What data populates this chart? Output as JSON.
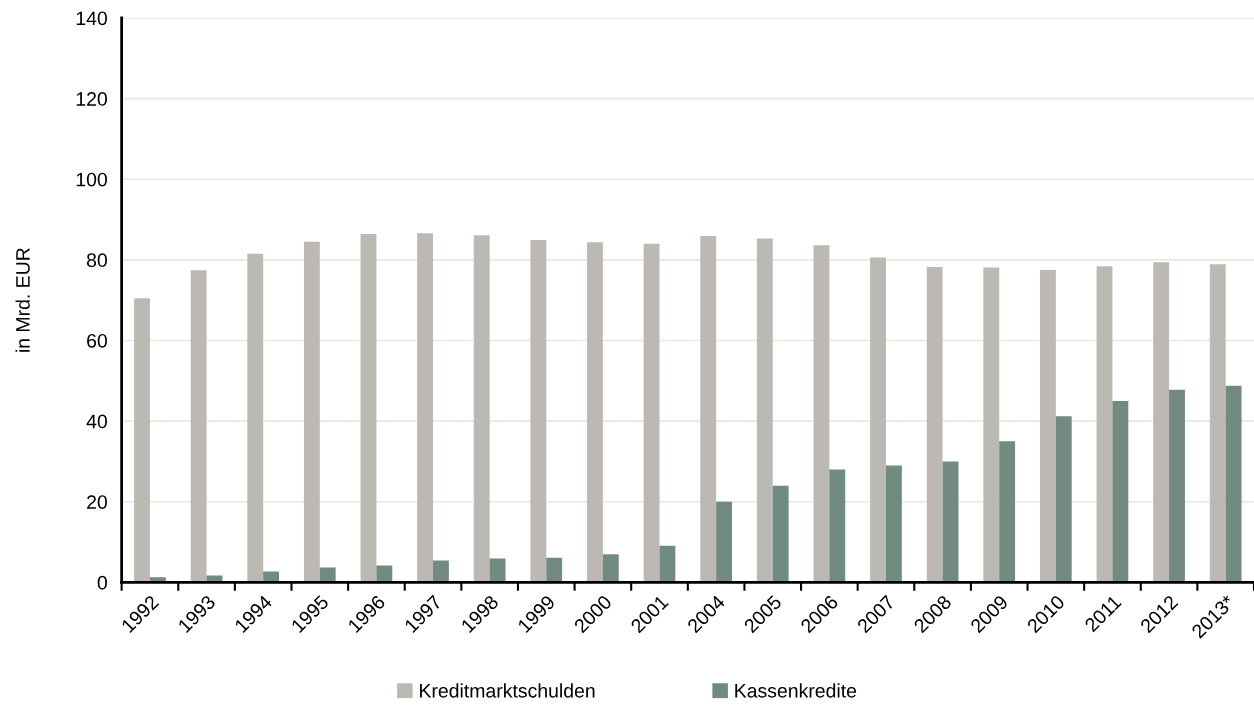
{
  "chart_data": {
    "type": "bar",
    "ylabel": "in Mrd. EUR",
    "categories": [
      "1992",
      "1993",
      "1994",
      "1995",
      "1996",
      "1997",
      "1998",
      "1999",
      "2000",
      "2001",
      "2004",
      "2005",
      "2006",
      "2007",
      "2008",
      "2009",
      "2010",
      "2011",
      "2012",
      "2013*"
    ],
    "series": [
      {
        "name": "Kreditmarktschulden",
        "color": "#bcb8b4",
        "values": [
          70.5,
          77.4,
          81.5,
          84.5,
          86.4,
          86.6,
          86.1,
          84.9,
          84.4,
          84.0,
          85.9,
          85.3,
          83.6,
          80.6,
          78.2,
          78.1,
          77.5,
          78.4,
          79.4,
          78.9
        ]
      },
      {
        "name": "Kassenkredite",
        "color": "#718b80",
        "values": [
          1.3,
          1.7,
          2.7,
          3.7,
          4.2,
          5.4,
          5.9,
          6.1,
          7.0,
          9.1,
          20.0,
          24.0,
          28.0,
          29.0,
          30.0,
          35.0,
          41.2,
          45.0,
          47.8,
          48.8
        ]
      }
    ],
    "ylim": [
      0,
      140
    ],
    "yticks": [
      0,
      20,
      40,
      60,
      80,
      100,
      120,
      140
    ],
    "grid": "y",
    "legend": "bottom"
  }
}
